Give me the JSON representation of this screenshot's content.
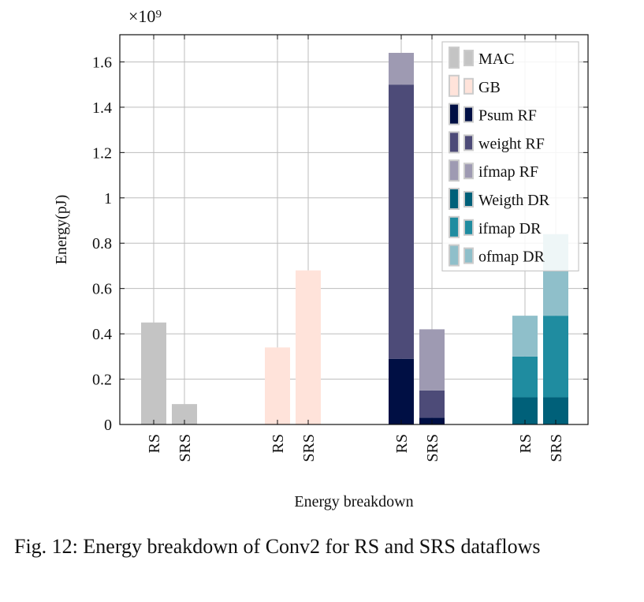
{
  "chart_data": {
    "type": "bar",
    "stacked": true,
    "scale_label": "×10⁹",
    "ylabel": "Energy(pJ)",
    "xlabel": "Energy breakdown",
    "ylim": [
      0,
      1.72
    ],
    "yticks": [
      "0",
      "0.2",
      "0.4",
      "0.6",
      "0.8",
      "1",
      "1.2",
      "1.4",
      "1.6"
    ],
    "ytick_values": [
      0,
      0.2,
      0.4,
      0.6,
      0.8,
      1.0,
      1.2,
      1.4,
      1.6
    ],
    "grid": true,
    "legend_position": "top-right",
    "legend": [
      {
        "name": "MAC",
        "color": "#c4c4c4"
      },
      {
        "name": "GB",
        "color": "#ffe3da"
      },
      {
        "name": "Psum RF",
        "color": "#000f44"
      },
      {
        "name": "weight RF",
        "color": "#4d4b78"
      },
      {
        "name": "ifmap RF",
        "color": "#9e9ab2"
      },
      {
        "name": "Weigth DR",
        "color": "#006079"
      },
      {
        "name": "ifmap DR",
        "color": "#1f8ca0"
      },
      {
        "name": "ofmap DR",
        "color": "#8fbfca"
      }
    ],
    "groups": [
      {
        "bars": [
          {
            "label": "RS",
            "segments": [
              {
                "component": "MAC",
                "value": 0.45
              }
            ]
          },
          {
            "label": "SRS",
            "segments": [
              {
                "component": "MAC",
                "value": 0.09
              }
            ]
          }
        ]
      },
      {
        "bars": [
          {
            "label": "RS",
            "segments": [
              {
                "component": "GB",
                "value": 0.34
              }
            ]
          },
          {
            "label": "SRS",
            "segments": [
              {
                "component": "GB",
                "value": 0.68
              }
            ]
          }
        ]
      },
      {
        "bars": [
          {
            "label": "RS",
            "segments": [
              {
                "component": "Psum RF",
                "value": 0.29
              },
              {
                "component": "weight RF",
                "value": 1.21
              },
              {
                "component": "ifmap RF",
                "value": 0.14
              }
            ]
          },
          {
            "label": "SRS",
            "segments": [
              {
                "component": "Psum RF",
                "value": 0.03
              },
              {
                "component": "weight RF",
                "value": 0.12
              },
              {
                "component": "ifmap RF",
                "value": 0.27
              }
            ]
          }
        ]
      },
      {
        "bars": [
          {
            "label": "RS",
            "segments": [
              {
                "component": "Weigth DR",
                "value": 0.12
              },
              {
                "component": "ifmap DR",
                "value": 0.18
              },
              {
                "component": "ofmap DR",
                "value": 0.18
              }
            ]
          },
          {
            "label": "SRS",
            "segments": [
              {
                "component": "Weigth DR",
                "value": 0.12
              },
              {
                "component": "ifmap DR",
                "value": 0.36
              },
              {
                "component": "ofmap DR",
                "value": 0.36
              }
            ]
          }
        ]
      }
    ]
  },
  "caption": "Fig. 12: Energy breakdown of Conv2 for RS and SRS dataflows"
}
